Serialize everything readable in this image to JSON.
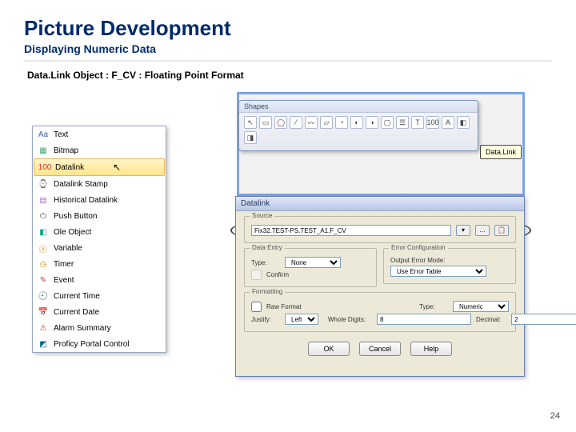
{
  "title": "Picture Development",
  "subtitle": "Displaying Numeric Data",
  "caption": "Data.Link Object : F_CV : Floating Point Format",
  "page_number": "24",
  "shapes_toolbar": {
    "title": "Shapes",
    "tools": [
      "↖",
      "▭",
      "◯",
      "⁄",
      "〰",
      "▱",
      "◔",
      "◐",
      "◑",
      "▢",
      "☰",
      "T",
      "100",
      "A",
      "◧",
      "◨"
    ]
  },
  "tooltip": {
    "text": "Data.Link"
  },
  "context_menu": {
    "items": [
      {
        "icon": "Aa",
        "label": "Text",
        "color": "#3a67b5"
      },
      {
        "icon": "▦",
        "label": "Bitmap",
        "color": "#4a7"
      },
      {
        "icon": "100",
        "label": "Datalink",
        "color": "#d33",
        "selected": true
      },
      {
        "icon": "⌚",
        "label": "Datalink Stamp",
        "color": "#888"
      },
      {
        "icon": "▤",
        "label": "Historical Datalink",
        "color": "#a7c"
      },
      {
        "icon": "⏻",
        "label": "Push Button",
        "color": "#555"
      },
      {
        "icon": "◧",
        "label": "Ole Object",
        "color": "#1a8"
      },
      {
        "icon": "ⓥ",
        "label": "Variable",
        "color": "#c80"
      },
      {
        "icon": "◷",
        "label": "Timer",
        "color": "#d80"
      },
      {
        "icon": "✎",
        "label": "Event",
        "color": "#c33"
      },
      {
        "icon": "🕘",
        "label": "Current Time",
        "color": "#a60"
      },
      {
        "icon": "📅",
        "label": "Current Date",
        "color": "#058"
      },
      {
        "icon": "⚠",
        "label": "Alarm Summary",
        "color": "#d22"
      },
      {
        "icon": "◩",
        "label": "Proficy Portal Control",
        "color": "#068"
      }
    ]
  },
  "dialog": {
    "title": "Datalink",
    "source": {
      "legend": "Source",
      "value": "Fix32.TEST-PS.TEST_A1.F_CV",
      "browse": "...",
      "db": "📋"
    },
    "data_entry": {
      "legend": "Data Entry",
      "type_label": "Type:",
      "type_value": "None",
      "confirm_label": "Confirm"
    },
    "error_cfg": {
      "legend": "Error Configuration",
      "mode_label": "Output Error Mode:",
      "mode_value": "Use Error Table"
    },
    "formatting": {
      "legend": "Formatting",
      "raw_label": "Raw Format",
      "type_label": "Type:",
      "type_value": "Numeric",
      "justify_label": "Justify:",
      "justify_value": "Left",
      "whole_label": "Whole Digits:",
      "whole_value": "8",
      "decimal_label": "Decimal:",
      "decimal_value": "2"
    },
    "buttons": {
      "ok": "OK",
      "cancel": "Cancel",
      "help": "Help"
    }
  }
}
